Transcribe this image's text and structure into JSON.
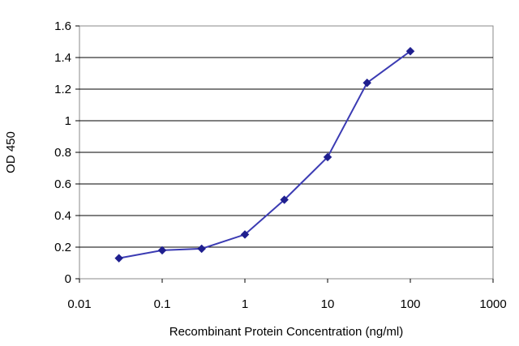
{
  "chart_data": {
    "type": "line",
    "title": "",
    "xlabel": "Recombinant Protein Concentration (ng/ml)",
    "ylabel": "OD 450",
    "x_scale": "log",
    "xlim": [
      0.01,
      1000
    ],
    "ylim": [
      0,
      1.6
    ],
    "x_ticks": [
      "0.01",
      "0.1",
      "1",
      "10",
      "100",
      "1000"
    ],
    "x_tick_values": [
      0.01,
      0.1,
      1,
      10,
      100,
      1000
    ],
    "y_ticks": [
      "0",
      "0.2",
      "0.4",
      "0.6",
      "0.8",
      "1",
      "1.2",
      "1.4",
      "1.6"
    ],
    "y_tick_values": [
      0,
      0.2,
      0.4,
      0.6,
      0.8,
      1,
      1.2,
      1.4,
      1.6
    ],
    "grid": "horizontal",
    "legend": "none",
    "series": [
      {
        "x": [
          0.03,
          0.1,
          0.3,
          1,
          3,
          10,
          30,
          100
        ],
        "y": [
          0.13,
          0.18,
          0.19,
          0.28,
          0.5,
          0.77,
          1.24,
          1.44
        ],
        "color": "#3b3bb3",
        "marker": "diamond",
        "marker_color": "#1f1f8f"
      }
    ]
  }
}
